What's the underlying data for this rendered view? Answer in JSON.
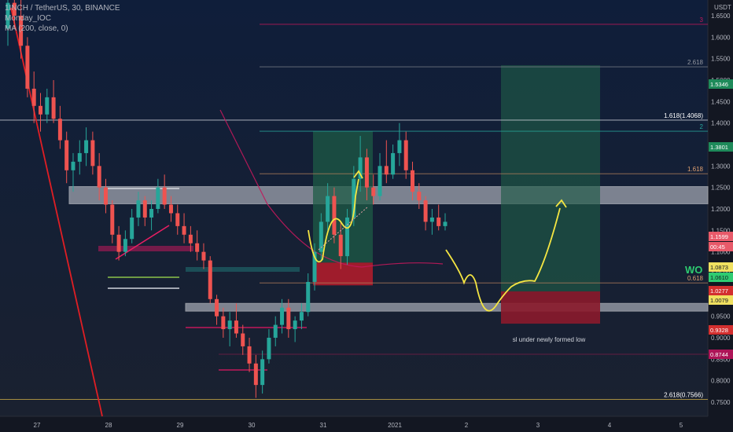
{
  "legend": {
    "symbol": "1INCH / TetherUS, 30, BINANCE",
    "indicator1": "Monday_IOC",
    "indicator2": "MA (200, close, 0)"
  },
  "price_axis_unit": "USDT",
  "colors": {
    "background": "#131722",
    "bull_candle": "#26a69a",
    "bear_candle": "#ef5350",
    "trendline": "#e01e24",
    "ma": "#c2185b",
    "annotation_path": "#f5e642",
    "zone_white": "#d1d4dc",
    "target_zone": "#1e5b46",
    "stop_zone": "#8b1a2b"
  },
  "chart_data": {
    "type": "candlestick",
    "x_ticks": [
      "27",
      "28",
      "29",
      "30",
      "31",
      "2021",
      "2",
      "3",
      "4",
      "5"
    ],
    "y_ticks": [
      "1.6500",
      "1.6000",
      "1.5500",
      "1.5000",
      "1.4500",
      "1.4000",
      "1.3500",
      "1.3000",
      "1.2500",
      "1.2000",
      "1.1500",
      "1.1000",
      "1.0500",
      "1.0000",
      "0.9500",
      "0.9000",
      "0.8500",
      "0.8000",
      "0.7500"
    ],
    "ylim": [
      0.735,
      1.745
    ],
    "fib_lines": [
      {
        "label": "3",
        "value": 1.63
      },
      {
        "label": "2.618",
        "value": 1.531
      },
      {
        "label": "1.618(1.4068)",
        "value": 1.4068
      },
      {
        "label": "2",
        "value": 1.381
      },
      {
        "label": "1.618",
        "value": 1.282
      },
      {
        "label": "0.618",
        "value": 1.0277
      },
      {
        "label": "2.618(0.7566)",
        "value": 0.7566
      }
    ],
    "price_badges": [
      "1.5346",
      "1.3801",
      "1.1599",
      "00:45",
      "1.0873",
      "1.0610",
      "1.0277",
      "1.0079",
      "0.9328",
      "0.8744"
    ],
    "annotations": [
      "WO",
      "sl under newly formed low"
    ],
    "zones": [
      {
        "name": "resistance-zone",
        "low": 1.212,
        "high": 1.252
      },
      {
        "name": "support-zone",
        "low": 0.962,
        "high": 0.98
      },
      {
        "name": "long-target-zone",
        "low": 1.075,
        "high": 1.381
      },
      {
        "name": "long-stop-zone",
        "low": 1.022,
        "high": 1.075
      },
      {
        "name": "projected-target-zone",
        "low": 1.0079,
        "high": 1.5346
      },
      {
        "name": "projected-stop-zone",
        "low": 0.9328,
        "high": 1.0079
      }
    ],
    "candles": [
      {
        "o": 1.62,
        "h": 1.72,
        "l": 1.58,
        "c": 1.68
      },
      {
        "o": 1.68,
        "h": 1.74,
        "l": 1.62,
        "c": 1.65
      },
      {
        "o": 1.65,
        "h": 1.7,
        "l": 1.55,
        "c": 1.58
      },
      {
        "o": 1.58,
        "h": 1.6,
        "l": 1.46,
        "c": 1.48
      },
      {
        "o": 1.48,
        "h": 1.52,
        "l": 1.4,
        "c": 1.44
      },
      {
        "o": 1.44,
        "h": 1.47,
        "l": 1.38,
        "c": 1.42
      },
      {
        "o": 1.42,
        "h": 1.48,
        "l": 1.4,
        "c": 1.46
      },
      {
        "o": 1.46,
        "h": 1.5,
        "l": 1.4,
        "c": 1.41
      },
      {
        "o": 1.41,
        "h": 1.44,
        "l": 1.34,
        "c": 1.36
      },
      {
        "o": 1.36,
        "h": 1.38,
        "l": 1.26,
        "c": 1.29
      },
      {
        "o": 1.29,
        "h": 1.33,
        "l": 1.24,
        "c": 1.31
      },
      {
        "o": 1.31,
        "h": 1.36,
        "l": 1.28,
        "c": 1.33
      },
      {
        "o": 1.33,
        "h": 1.39,
        "l": 1.3,
        "c": 1.36
      },
      {
        "o": 1.36,
        "h": 1.38,
        "l": 1.28,
        "c": 1.3
      },
      {
        "o": 1.3,
        "h": 1.33,
        "l": 1.22,
        "c": 1.25
      },
      {
        "o": 1.25,
        "h": 1.27,
        "l": 1.19,
        "c": 1.21
      },
      {
        "o": 1.21,
        "h": 1.22,
        "l": 1.12,
        "c": 1.14
      },
      {
        "o": 1.14,
        "h": 1.16,
        "l": 1.08,
        "c": 1.1
      },
      {
        "o": 1.1,
        "h": 1.15,
        "l": 1.09,
        "c": 1.13
      },
      {
        "o": 1.13,
        "h": 1.2,
        "l": 1.12,
        "c": 1.18
      },
      {
        "o": 1.18,
        "h": 1.24,
        "l": 1.16,
        "c": 1.22
      },
      {
        "o": 1.22,
        "h": 1.23,
        "l": 1.16,
        "c": 1.18
      },
      {
        "o": 1.18,
        "h": 1.22,
        "l": 1.15,
        "c": 1.2
      },
      {
        "o": 1.2,
        "h": 1.27,
        "l": 1.19,
        "c": 1.25
      },
      {
        "o": 1.25,
        "h": 1.28,
        "l": 1.2,
        "c": 1.21
      },
      {
        "o": 1.21,
        "h": 1.23,
        "l": 1.17,
        "c": 1.19
      },
      {
        "o": 1.19,
        "h": 1.21,
        "l": 1.14,
        "c": 1.16
      },
      {
        "o": 1.16,
        "h": 1.19,
        "l": 1.12,
        "c": 1.14
      },
      {
        "o": 1.14,
        "h": 1.16,
        "l": 1.1,
        "c": 1.12
      },
      {
        "o": 1.12,
        "h": 1.15,
        "l": 1.08,
        "c": 1.1
      },
      {
        "o": 1.1,
        "h": 1.12,
        "l": 1.06,
        "c": 1.08
      },
      {
        "o": 1.08,
        "h": 1.09,
        "l": 0.98,
        "c": 0.99
      },
      {
        "o": 0.99,
        "h": 1.0,
        "l": 0.93,
        "c": 0.95
      },
      {
        "o": 0.95,
        "h": 0.97,
        "l": 0.9,
        "c": 0.92
      },
      {
        "o": 0.92,
        "h": 0.96,
        "l": 0.88,
        "c": 0.94
      },
      {
        "o": 0.94,
        "h": 0.98,
        "l": 0.9,
        "c": 0.91
      },
      {
        "o": 0.91,
        "h": 0.93,
        "l": 0.86,
        "c": 0.88
      },
      {
        "o": 0.88,
        "h": 0.9,
        "l": 0.82,
        "c": 0.84
      },
      {
        "o": 0.84,
        "h": 0.86,
        "l": 0.76,
        "c": 0.79
      },
      {
        "o": 0.79,
        "h": 0.87,
        "l": 0.77,
        "c": 0.85
      },
      {
        "o": 0.85,
        "h": 0.92,
        "l": 0.84,
        "c": 0.9
      },
      {
        "o": 0.9,
        "h": 0.95,
        "l": 0.88,
        "c": 0.93
      },
      {
        "o": 0.93,
        "h": 0.99,
        "l": 0.91,
        "c": 0.97
      },
      {
        "o": 0.97,
        "h": 0.99,
        "l": 0.9,
        "c": 0.92
      },
      {
        "o": 0.92,
        "h": 0.95,
        "l": 0.89,
        "c": 0.94
      },
      {
        "o": 0.94,
        "h": 0.98,
        "l": 0.92,
        "c": 0.96
      },
      {
        "o": 0.96,
        "h": 1.05,
        "l": 0.95,
        "c": 1.03
      },
      {
        "o": 1.03,
        "h": 1.12,
        "l": 1.01,
        "c": 1.1
      },
      {
        "o": 1.1,
        "h": 1.19,
        "l": 1.08,
        "c": 1.17
      },
      {
        "o": 1.17,
        "h": 1.26,
        "l": 1.15,
        "c": 1.23
      },
      {
        "o": 1.23,
        "h": 1.25,
        "l": 1.12,
        "c": 1.14
      },
      {
        "o": 1.14,
        "h": 1.17,
        "l": 1.06,
        "c": 1.09
      },
      {
        "o": 1.09,
        "h": 1.2,
        "l": 1.07,
        "c": 1.18
      },
      {
        "o": 1.18,
        "h": 1.3,
        "l": 1.16,
        "c": 1.27
      },
      {
        "o": 1.27,
        "h": 1.37,
        "l": 1.24,
        "c": 1.32
      },
      {
        "o": 1.32,
        "h": 1.34,
        "l": 1.22,
        "c": 1.25
      },
      {
        "o": 1.25,
        "h": 1.28,
        "l": 1.21,
        "c": 1.23
      },
      {
        "o": 1.23,
        "h": 1.33,
        "l": 1.22,
        "c": 1.3
      },
      {
        "o": 1.3,
        "h": 1.36,
        "l": 1.26,
        "c": 1.28
      },
      {
        "o": 1.28,
        "h": 1.35,
        "l": 1.27,
        "c": 1.33
      },
      {
        "o": 1.33,
        "h": 1.4,
        "l": 1.3,
        "c": 1.36
      },
      {
        "o": 1.36,
        "h": 1.38,
        "l": 1.27,
        "c": 1.29
      },
      {
        "o": 1.29,
        "h": 1.31,
        "l": 1.22,
        "c": 1.24
      },
      {
        "o": 1.24,
        "h": 1.26,
        "l": 1.2,
        "c": 1.22
      },
      {
        "o": 1.22,
        "h": 1.23,
        "l": 1.15,
        "c": 1.17
      },
      {
        "o": 1.17,
        "h": 1.2,
        "l": 1.14,
        "c": 1.18
      },
      {
        "o": 1.18,
        "h": 1.21,
        "l": 1.15,
        "c": 1.16
      },
      {
        "o": 1.16,
        "h": 1.19,
        "l": 1.15,
        "c": 1.17
      }
    ]
  }
}
